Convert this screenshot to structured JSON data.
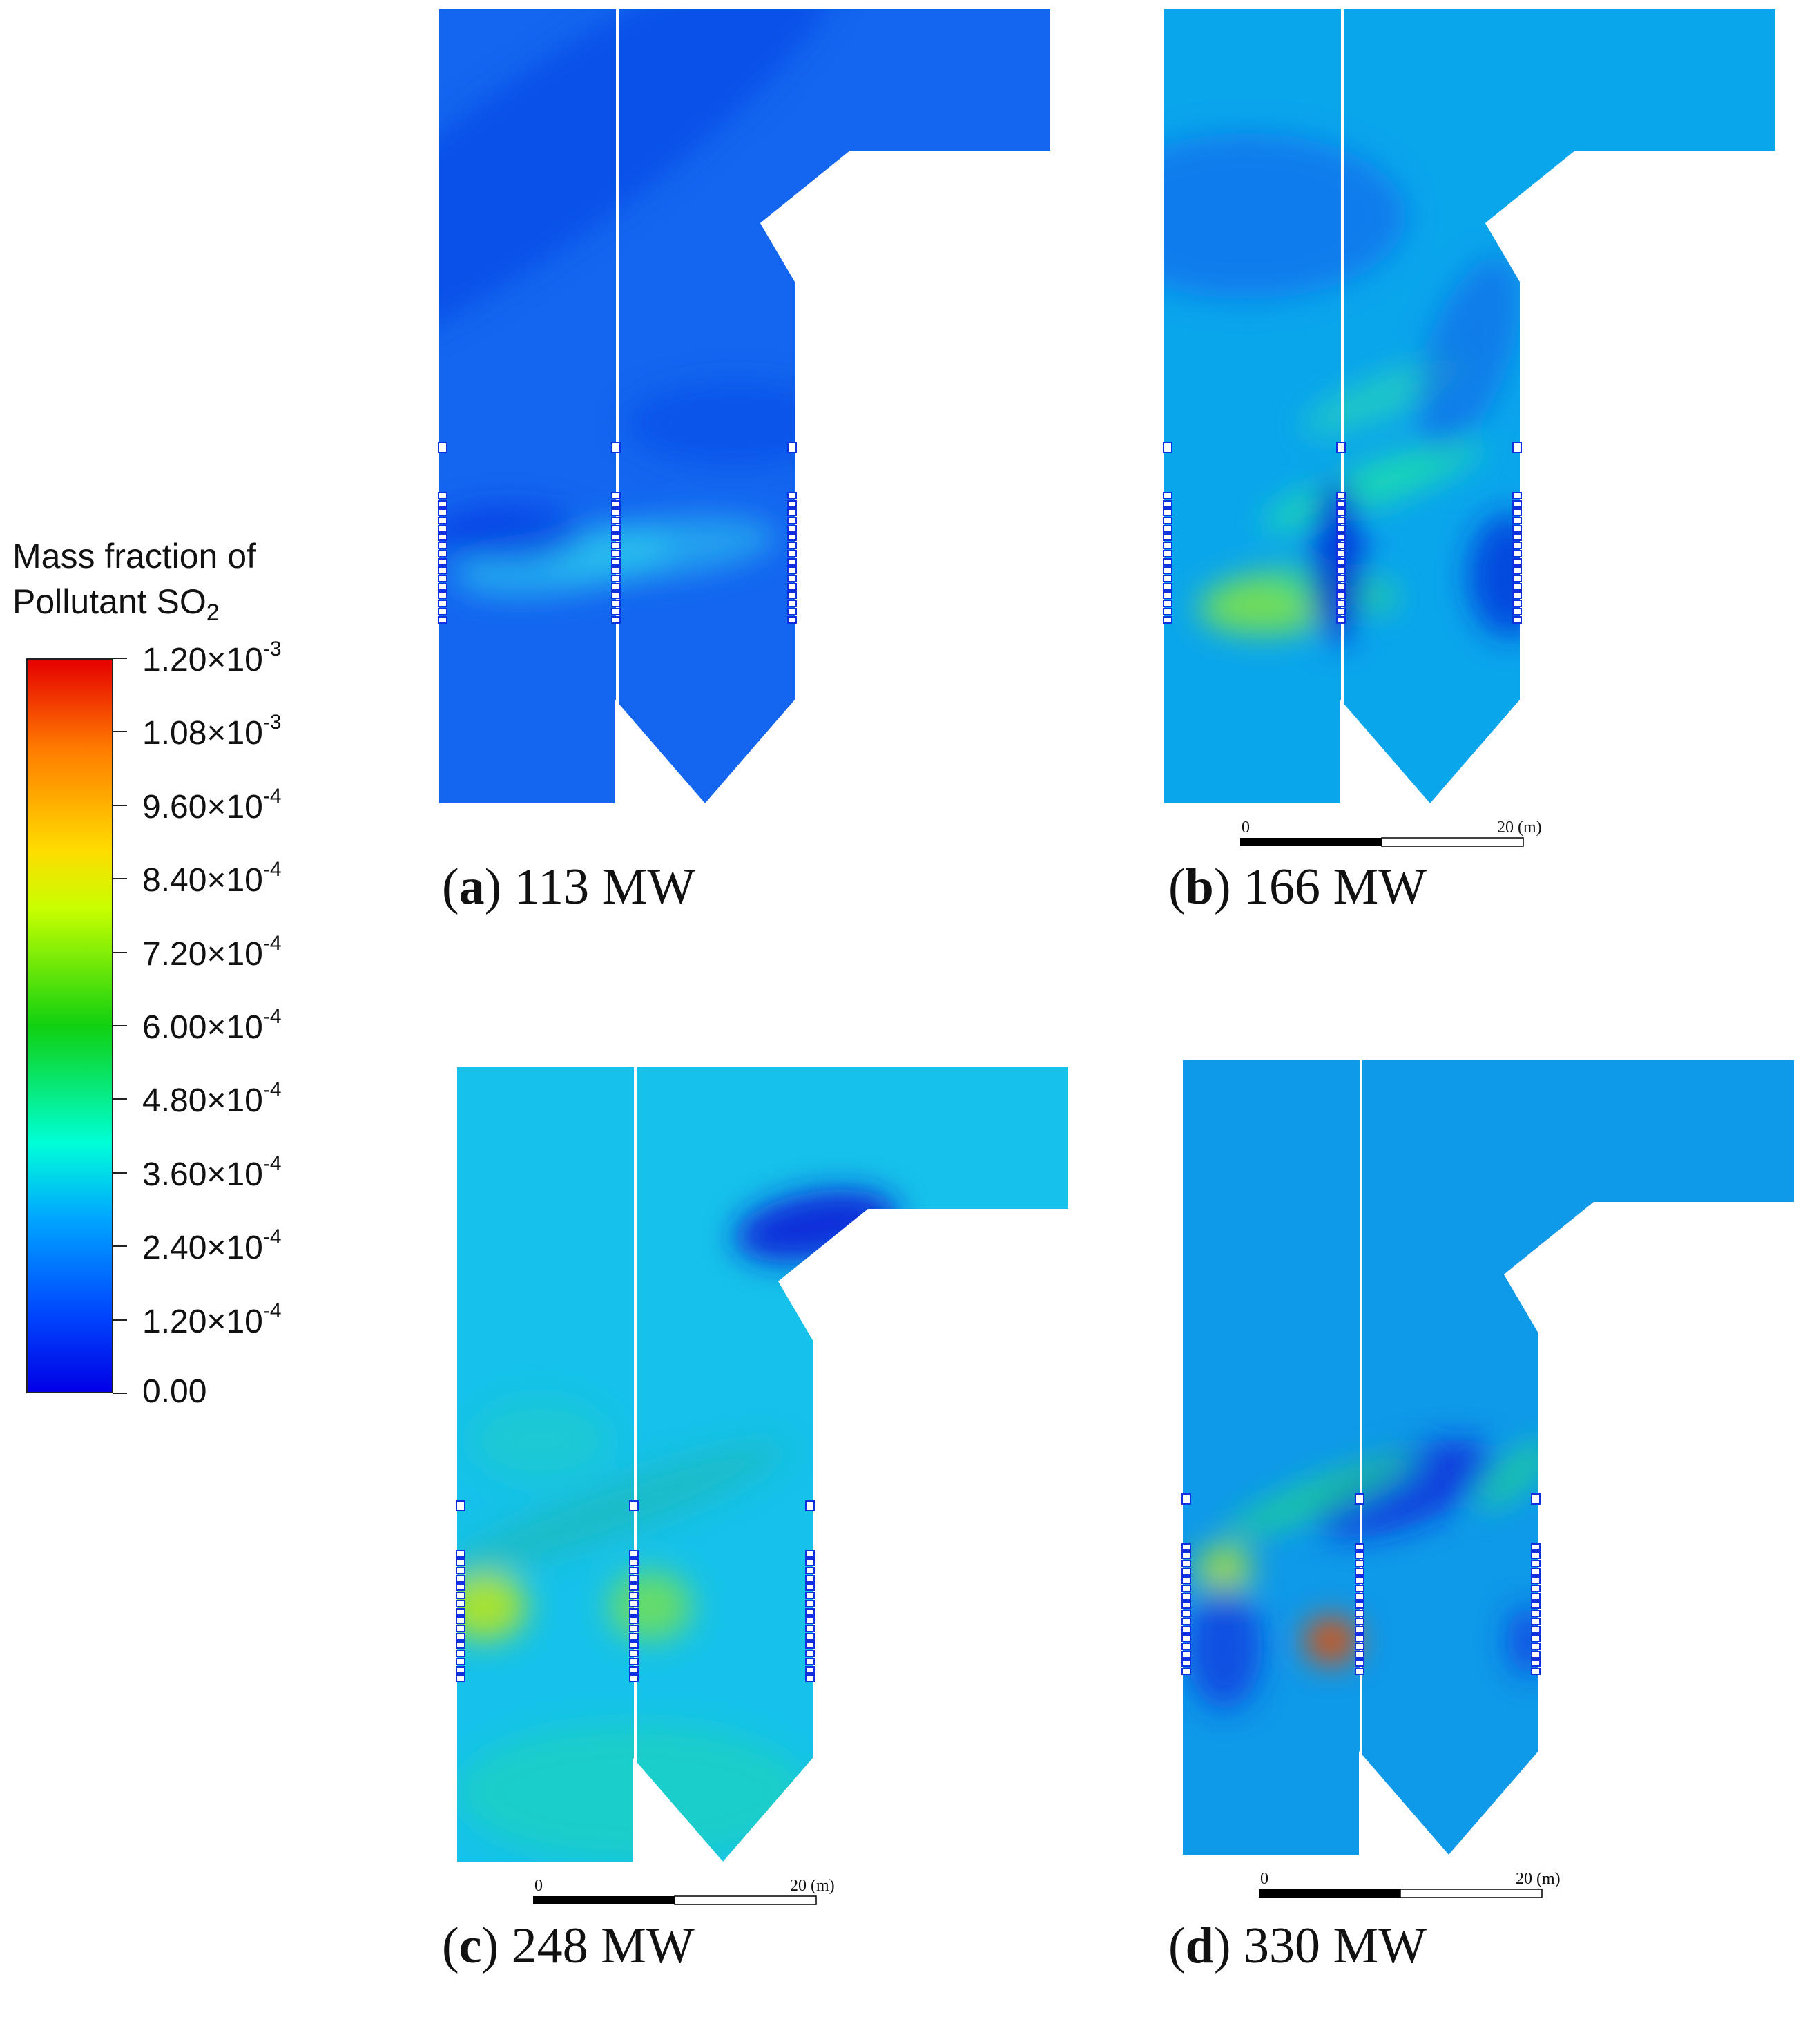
{
  "legend": {
    "title_line1": "Mass fraction of",
    "title_line2_prefix": "Pollutant SO",
    "title_line2_sub": "2",
    "ticks": [
      {
        "mant": "1.20",
        "exp": "-3"
      },
      {
        "mant": "1.08",
        "exp": "-3"
      },
      {
        "mant": "9.60",
        "exp": "-4"
      },
      {
        "mant": "8.40",
        "exp": "-4"
      },
      {
        "mant": "7.20",
        "exp": "-4"
      },
      {
        "mant": "6.00",
        "exp": "-4"
      },
      {
        "mant": "4.80",
        "exp": "-4"
      },
      {
        "mant": "3.60",
        "exp": "-4"
      },
      {
        "mant": "2.40",
        "exp": "-4"
      },
      {
        "mant": "1.20",
        "exp": "-4"
      },
      {
        "mant": "0.00",
        "exp": ""
      }
    ],
    "times_sign": "×10",
    "colors": [
      "#e60000",
      "#ff7a00",
      "#ffdc00",
      "#10d010",
      "#00ffd8",
      "#00a8ff",
      "#0000e6"
    ]
  },
  "scale_bar": {
    "start": "0",
    "end": "20 (m)"
  },
  "panels": [
    {
      "letter": "a",
      "label": "113 MW",
      "base": "#1466f0",
      "has_scale": false
    },
    {
      "letter": "b",
      "label": "166 MW",
      "base": "#0aa6ec",
      "has_scale": true
    },
    {
      "letter": "c",
      "label": "248 MW",
      "base": "#16c2ea",
      "has_scale": true
    },
    {
      "letter": "d",
      "label": "330 MW",
      "base": "#0e9ae9",
      "has_scale": true
    }
  ]
}
